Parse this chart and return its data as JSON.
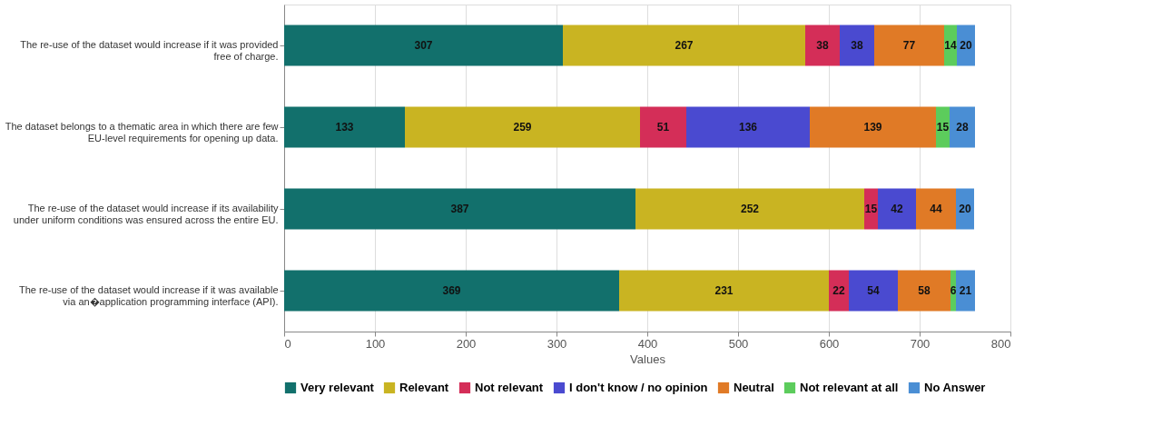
{
  "chart_data": {
    "type": "bar",
    "orientation": "horizontal",
    "stacked": true,
    "xlabel": "Values",
    "categories": [
      "The re-use of the dataset would increase if it was provided free of charge.",
      "The dataset belongs to a thematic area in which there are few EU-level requirements for opening up data.",
      "The re-use of the dataset would increase if its availability under uniform conditions was ensured across the entire EU.",
      "The re-use of the dataset would increase if it was available via an�application programming interface (API)."
    ],
    "series": [
      {
        "name": "Very relevant",
        "color": "#12706c",
        "values": [
          307,
          133,
          387,
          369
        ]
      },
      {
        "name": "Relevant",
        "color": "#c9b422",
        "values": [
          267,
          259,
          252,
          231
        ]
      },
      {
        "name": "Not relevant",
        "color": "#d42e58",
        "values": [
          38,
          51,
          15,
          22
        ]
      },
      {
        "name": "I don't know / no opinion",
        "color": "#4a4ad0",
        "values": [
          38,
          136,
          42,
          54
        ]
      },
      {
        "name": "Neutral",
        "color": "#e07a26",
        "values": [
          77,
          139,
          44,
          58
        ]
      },
      {
        "name": "Not relevant at all",
        "color": "#5ccc5c",
        "values": [
          14,
          15,
          null,
          6
        ]
      },
      {
        "name": "No Answer",
        "color": "#4a8ed4",
        "values": [
          20,
          28,
          20,
          21
        ]
      }
    ],
    "xlim": [
      0,
      800
    ],
    "xticks": [
      0,
      100,
      200,
      300,
      400,
      500,
      600,
      700,
      800
    ],
    "grid": "x",
    "legend": "bottom",
    "data_labels": true
  }
}
